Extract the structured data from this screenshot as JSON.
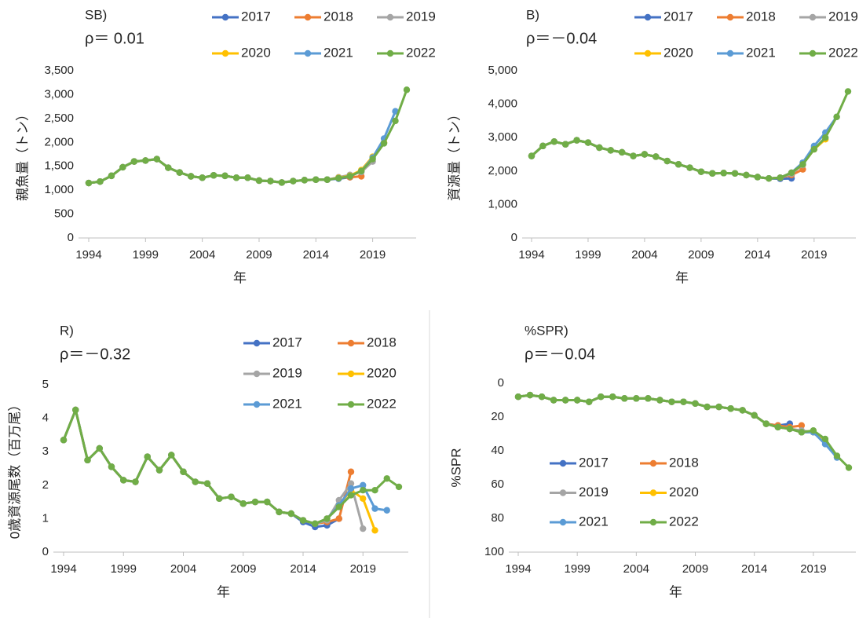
{
  "chart_data": [
    {
      "type": "line",
      "title": "SB)",
      "subtitle": "ρ＝ 0.01",
      "x_label": "年",
      "y_label": "親魚量（トン）",
      "x": [
        1994,
        1995,
        1996,
        1997,
        1998,
        1999,
        2000,
        2001,
        2002,
        2003,
        2004,
        2005,
        2006,
        2007,
        2008,
        2009,
        2010,
        2011,
        2012,
        2013,
        2014,
        2015,
        2016,
        2017,
        2018,
        2019,
        2020,
        2021,
        2022
      ],
      "xlim": [
        1994,
        2022
      ],
      "xticks": [
        1994,
        1999,
        2004,
        2009,
        2014,
        2019
      ],
      "ylim": [
        0,
        3500
      ],
      "yticks": [
        0,
        500,
        {
          "value": 1000,
          "label": "1,000"
        },
        {
          "value": 1500,
          "label": "1,500"
        },
        {
          "value": 2000,
          "label": "2,000"
        },
        {
          "value": 2500,
          "label": "2,500"
        },
        {
          "value": 3000,
          "label": "3,000"
        },
        {
          "value": 3500,
          "label": "3,500"
        }
      ],
      "series": [
        {
          "name": "2017",
          "color": "#4472c4",
          "values": [
            1150,
            1180,
            1300,
            1480,
            1600,
            1620,
            1650,
            1470,
            1370,
            1290,
            1260,
            1310,
            1300,
            1260,
            1260,
            1200,
            1190,
            1160,
            1190,
            1210,
            1220,
            1220,
            1240,
            1270,
            null,
            null,
            null,
            null,
            null
          ]
        },
        {
          "name": "2018",
          "color": "#ed7d31",
          "values": [
            1150,
            1180,
            1300,
            1480,
            1600,
            1620,
            1650,
            1470,
            1370,
            1290,
            1260,
            1310,
            1300,
            1260,
            1260,
            1200,
            1190,
            1160,
            1190,
            1210,
            1220,
            1220,
            1260,
            1270,
            1290,
            null,
            null,
            null,
            null
          ]
        },
        {
          "name": "2019",
          "color": "#a5a5a5",
          "values": [
            1150,
            1180,
            1300,
            1480,
            1600,
            1620,
            1650,
            1470,
            1370,
            1290,
            1260,
            1310,
            1300,
            1260,
            1260,
            1200,
            1190,
            1160,
            1190,
            1210,
            1220,
            1220,
            1270,
            1320,
            1380,
            1600,
            null,
            null,
            null
          ]
        },
        {
          "name": "2020",
          "color": "#ffc000",
          "values": [
            1150,
            1180,
            1300,
            1480,
            1600,
            1620,
            1650,
            1470,
            1370,
            1290,
            1260,
            1310,
            1300,
            1260,
            1260,
            1200,
            1190,
            1160,
            1190,
            1210,
            1220,
            1220,
            1260,
            1300,
            1420,
            1700,
            2000,
            null,
            null
          ]
        },
        {
          "name": "2021",
          "color": "#5b9bd5",
          "values": [
            1150,
            1180,
            1300,
            1480,
            1600,
            1620,
            1650,
            1470,
            1370,
            1290,
            1260,
            1310,
            1300,
            1260,
            1260,
            1200,
            1190,
            1160,
            1190,
            1210,
            1220,
            1220,
            1250,
            1290,
            1400,
            1680,
            2080,
            2650,
            null
          ]
        },
        {
          "name": "2022",
          "color": "#70ad47",
          "values": [
            1150,
            1180,
            1300,
            1480,
            1600,
            1620,
            1650,
            1470,
            1370,
            1290,
            1260,
            1310,
            1300,
            1260,
            1260,
            1200,
            1190,
            1160,
            1190,
            1210,
            1220,
            1220,
            1250,
            1290,
            1400,
            1650,
            1980,
            2450,
            3100
          ]
        }
      ]
    },
    {
      "type": "line",
      "title": "B)",
      "subtitle": "ρ＝－0.04",
      "x_label": "年",
      "y_label": "資源量（トン）",
      "x": [
        1994,
        1995,
        1996,
        1997,
        1998,
        1999,
        2000,
        2001,
        2002,
        2003,
        2004,
        2005,
        2006,
        2007,
        2008,
        2009,
        2010,
        2011,
        2012,
        2013,
        2014,
        2015,
        2016,
        2017,
        2018,
        2019,
        2020,
        2021,
        2022
      ],
      "xlim": [
        1994,
        2022
      ],
      "xticks": [
        1994,
        1999,
        2004,
        2009,
        2014,
        2019
      ],
      "ylim": [
        0,
        5000
      ],
      "yticks": [
        0,
        {
          "value": 1000,
          "label": "1,000"
        },
        {
          "value": 2000,
          "label": "2,000"
        },
        {
          "value": 3000,
          "label": "3,000"
        },
        {
          "value": 4000,
          "label": "4,000"
        },
        {
          "value": 5000,
          "label": "5,000"
        }
      ],
      "series": [
        {
          "name": "2017",
          "color": "#4472c4",
          "values": [
            2450,
            2750,
            2880,
            2800,
            2920,
            2850,
            2700,
            2620,
            2560,
            2450,
            2500,
            2430,
            2300,
            2200,
            2100,
            1980,
            1930,
            1940,
            1930,
            1880,
            1820,
            1780,
            1770,
            1780,
            null,
            null,
            null,
            null,
            null
          ]
        },
        {
          "name": "2018",
          "color": "#ed7d31",
          "values": [
            2450,
            2750,
            2880,
            2800,
            2920,
            2850,
            2700,
            2620,
            2560,
            2450,
            2500,
            2430,
            2300,
            2200,
            2100,
            1980,
            1930,
            1940,
            1930,
            1880,
            1820,
            1780,
            1800,
            1880,
            2050,
            null,
            null,
            null,
            null
          ]
        },
        {
          "name": "2019",
          "color": "#a5a5a5",
          "values": [
            2450,
            2750,
            2880,
            2800,
            2920,
            2850,
            2700,
            2620,
            2560,
            2450,
            2500,
            2430,
            2300,
            2200,
            2100,
            1980,
            1930,
            1940,
            1930,
            1880,
            1820,
            1780,
            1800,
            1920,
            2180,
            2700,
            null,
            null,
            null
          ]
        },
        {
          "name": "2020",
          "color": "#ffc000",
          "values": [
            2450,
            2750,
            2880,
            2800,
            2920,
            2850,
            2700,
            2620,
            2560,
            2450,
            2500,
            2430,
            2300,
            2200,
            2100,
            1980,
            1930,
            1940,
            1930,
            1880,
            1820,
            1780,
            1800,
            1950,
            2200,
            2650,
            2950,
            null,
            null
          ]
        },
        {
          "name": "2021",
          "color": "#5b9bd5",
          "values": [
            2450,
            2750,
            2880,
            2800,
            2920,
            2850,
            2700,
            2620,
            2560,
            2450,
            2500,
            2430,
            2300,
            2200,
            2100,
            1980,
            1930,
            1940,
            1930,
            1880,
            1820,
            1780,
            1800,
            1950,
            2250,
            2750,
            3150,
            3620,
            null
          ]
        },
        {
          "name": "2022",
          "color": "#70ad47",
          "values": [
            2450,
            2750,
            2880,
            2800,
            2920,
            2850,
            2700,
            2620,
            2560,
            2450,
            2500,
            2430,
            2300,
            2200,
            2100,
            1980,
            1930,
            1940,
            1930,
            1880,
            1820,
            1780,
            1800,
            1950,
            2200,
            2650,
            3000,
            3620,
            4380
          ]
        }
      ]
    },
    {
      "type": "line",
      "title": "R)",
      "subtitle": "ρ＝－0.32",
      "x_label": "年",
      "y_label": "0歳資源尾数（百万尾）",
      "x": [
        1994,
        1995,
        1996,
        1997,
        1998,
        1999,
        2000,
        2001,
        2002,
        2003,
        2004,
        2005,
        2006,
        2007,
        2008,
        2009,
        2010,
        2011,
        2012,
        2013,
        2014,
        2015,
        2016,
        2017,
        2018,
        2019,
        2020,
        2021,
        2022
      ],
      "xlim": [
        1994,
        2022
      ],
      "xticks": [
        1994,
        1999,
        2004,
        2009,
        2014,
        2019
      ],
      "ylim": [
        0,
        5
      ],
      "yticks": [
        0,
        1,
        2,
        3,
        4,
        5
      ],
      "series": [
        {
          "name": "2017",
          "color": "#4472c4",
          "values": [
            3.35,
            4.25,
            2.75,
            3.1,
            2.55,
            2.15,
            2.1,
            2.85,
            2.45,
            2.9,
            2.4,
            2.1,
            2.05,
            1.6,
            1.65,
            1.45,
            1.5,
            1.5,
            1.2,
            1.15,
            0.9,
            0.75,
            0.8,
            1.0,
            null,
            null,
            null,
            null,
            null
          ]
        },
        {
          "name": "2018",
          "color": "#ed7d31",
          "values": [
            3.35,
            4.25,
            2.75,
            3.1,
            2.55,
            2.15,
            2.1,
            2.85,
            2.45,
            2.9,
            2.4,
            2.1,
            2.05,
            1.6,
            1.65,
            1.45,
            1.5,
            1.5,
            1.2,
            1.15,
            0.95,
            0.85,
            0.9,
            1.0,
            2.4,
            null,
            null,
            null,
            null
          ]
        },
        {
          "name": "2019",
          "color": "#a5a5a5",
          "values": [
            3.35,
            4.25,
            2.75,
            3.1,
            2.55,
            2.15,
            2.1,
            2.85,
            2.45,
            2.9,
            2.4,
            2.1,
            2.05,
            1.6,
            1.65,
            1.45,
            1.5,
            1.5,
            1.2,
            1.15,
            0.95,
            0.85,
            0.95,
            1.55,
            2.05,
            0.7,
            null,
            null,
            null
          ]
        },
        {
          "name": "2020",
          "color": "#ffc000",
          "values": [
            3.35,
            4.25,
            2.75,
            3.1,
            2.55,
            2.15,
            2.1,
            2.85,
            2.45,
            2.9,
            2.4,
            2.1,
            2.05,
            1.6,
            1.65,
            1.45,
            1.5,
            1.5,
            1.2,
            1.15,
            0.95,
            0.85,
            1.0,
            1.4,
            1.85,
            1.6,
            0.65,
            null,
            null
          ]
        },
        {
          "name": "2021",
          "color": "#5b9bd5",
          "values": [
            3.35,
            4.25,
            2.75,
            3.1,
            2.55,
            2.15,
            2.1,
            2.85,
            2.45,
            2.9,
            2.4,
            2.1,
            2.05,
            1.6,
            1.65,
            1.45,
            1.5,
            1.5,
            1.2,
            1.15,
            0.95,
            0.85,
            1.0,
            1.4,
            1.9,
            2.0,
            1.3,
            1.25,
            null
          ]
        },
        {
          "name": "2022",
          "color": "#70ad47",
          "values": [
            3.35,
            4.25,
            2.75,
            3.1,
            2.55,
            2.15,
            2.1,
            2.85,
            2.45,
            2.9,
            2.4,
            2.1,
            2.05,
            1.6,
            1.65,
            1.45,
            1.5,
            1.5,
            1.2,
            1.15,
            0.95,
            0.85,
            1.0,
            1.35,
            1.7,
            1.85,
            1.85,
            2.2,
            1.95
          ]
        }
      ]
    },
    {
      "type": "line",
      "title": "%SPR)",
      "subtitle": "ρ＝－0.04",
      "x_label": "年",
      "y_label": "%SPR",
      "y_inverted": true,
      "x": [
        1994,
        1995,
        1996,
        1997,
        1998,
        1999,
        2000,
        2001,
        2002,
        2003,
        2004,
        2005,
        2006,
        2007,
        2008,
        2009,
        2010,
        2011,
        2012,
        2013,
        2014,
        2015,
        2016,
        2017,
        2018,
        2019,
        2020,
        2021,
        2022
      ],
      "xlim": [
        1994,
        2022
      ],
      "xticks": [
        1994,
        1999,
        2004,
        2009,
        2014,
        2019
      ],
      "ylim": [
        0,
        100
      ],
      "yticks": [
        0,
        20,
        40,
        60,
        80,
        100
      ],
      "series": [
        {
          "name": "2017",
          "color": "#4472c4",
          "values": [
            8,
            7,
            8,
            10,
            10,
            10,
            11,
            8,
            8,
            9,
            9,
            9,
            10,
            11,
            11,
            12,
            14,
            14,
            15,
            16,
            19,
            24,
            25,
            24,
            null,
            null,
            null,
            null,
            null
          ]
        },
        {
          "name": "2018",
          "color": "#ed7d31",
          "values": [
            8,
            7,
            8,
            10,
            10,
            10,
            11,
            8,
            8,
            9,
            9,
            9,
            10,
            11,
            11,
            12,
            14,
            14,
            15,
            16,
            19,
            24,
            25,
            26,
            25,
            null,
            null,
            null,
            null
          ]
        },
        {
          "name": "2019",
          "color": "#a5a5a5",
          "values": [
            8,
            7,
            8,
            10,
            10,
            10,
            11,
            8,
            8,
            9,
            9,
            9,
            10,
            11,
            11,
            12,
            14,
            14,
            15,
            16,
            19,
            24,
            26,
            27,
            28,
            29,
            null,
            null,
            null
          ]
        },
        {
          "name": "2020",
          "color": "#ffc000",
          "values": [
            8,
            7,
            8,
            10,
            10,
            10,
            11,
            8,
            8,
            9,
            9,
            9,
            10,
            11,
            11,
            12,
            14,
            14,
            15,
            16,
            19,
            24,
            26,
            27,
            29,
            29,
            34,
            null,
            null
          ]
        },
        {
          "name": "2021",
          "color": "#5b9bd5",
          "values": [
            8,
            7,
            8,
            10,
            10,
            10,
            11,
            8,
            8,
            9,
            9,
            9,
            10,
            11,
            11,
            12,
            14,
            14,
            15,
            16,
            19,
            24,
            26,
            27,
            29,
            29,
            36,
            44,
            null
          ]
        },
        {
          "name": "2022",
          "color": "#70ad47",
          "values": [
            8,
            7,
            8,
            10,
            10,
            10,
            11,
            8,
            8,
            9,
            9,
            9,
            10,
            11,
            11,
            12,
            14,
            14,
            15,
            16,
            19,
            24,
            26,
            27,
            29,
            28,
            33,
            43,
            50
          ]
        }
      ]
    }
  ]
}
